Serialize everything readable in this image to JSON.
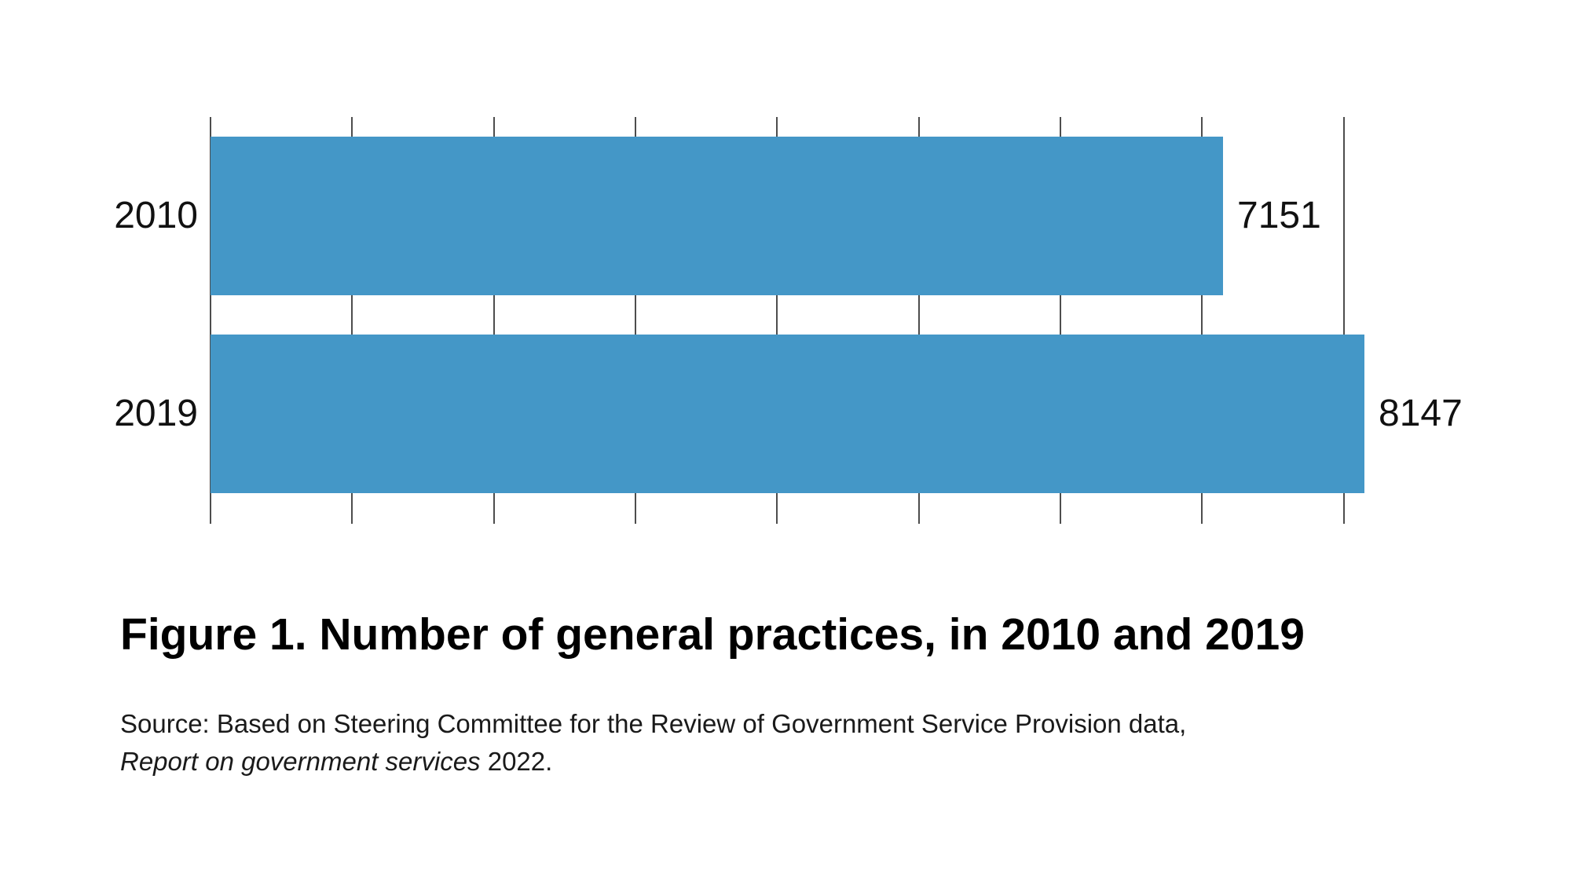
{
  "figure": {
    "title": "Figure 1. Number of general practices, in 2010 and 2019",
    "source_line1": "Source: Based on Steering Committee for the Review of Government Service Provision data,",
    "source_line2_italic": "Report on government services",
    "source_line2_rest": " 2022."
  },
  "chart_data": {
    "type": "bar",
    "orientation": "horizontal",
    "title": "Figure 1. Number of general practices, in 2010 and 2019",
    "categories": [
      "2010",
      "2019"
    ],
    "values": [
      7151,
      8147
    ],
    "value_labels_visible": true,
    "xlabel": "",
    "ylabel": "",
    "xlim": [
      0,
      8230
    ],
    "x_gridline_interval": 1000,
    "x_gridlines": [
      0,
      1000,
      2000,
      3000,
      4000,
      5000,
      6000,
      7000,
      8000
    ],
    "x_tick_labels_visible": false,
    "legend": "none",
    "grid": "vertical",
    "bar_color": "#4497c7",
    "gridline_color": "#4d4d4d",
    "label_color": "#111111"
  }
}
